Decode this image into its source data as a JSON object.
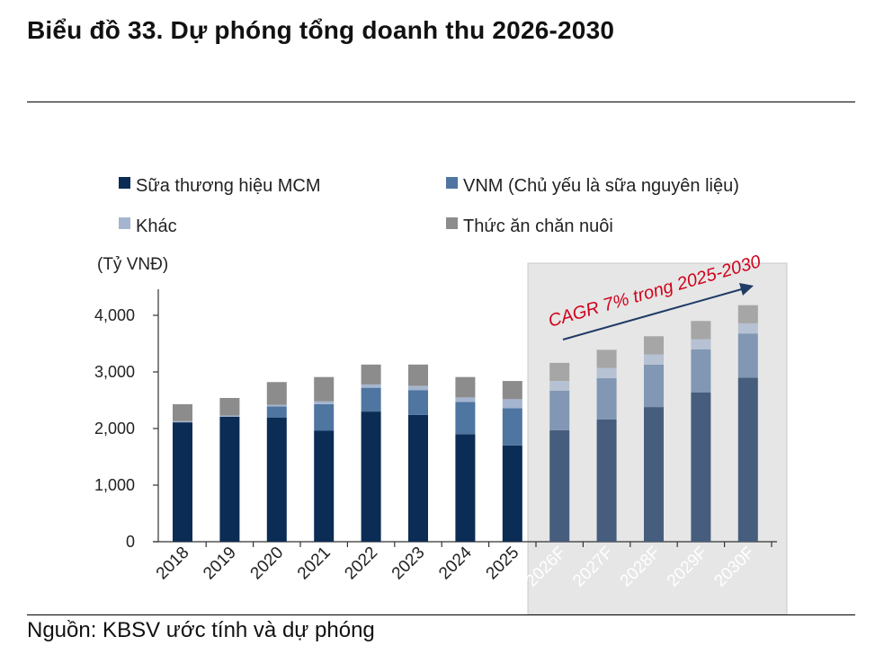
{
  "header": {
    "title": "Biểu đồ 33. Dự phóng tổng doanh thu 2026-2030"
  },
  "footer": {
    "source": "Nguồn: KBSV ước tính và dự phóng"
  },
  "chart_data": {
    "type": "bar",
    "stacked": true,
    "unit_label": "(Tỷ VNĐ)",
    "categories": [
      "2018",
      "2019",
      "2020",
      "2021",
      "2022",
      "2023",
      "2024",
      "2025",
      "2026F",
      "2027F",
      "2028F",
      "2029F",
      "2030F"
    ],
    "forecast_categories": [
      "2026F",
      "2027F",
      "2028F",
      "2029F",
      "2030F"
    ],
    "ylim": [
      0,
      4000
    ],
    "yticks": [
      {
        "value": 0,
        "label": "0"
      },
      {
        "value": 1000,
        "label": "1,000"
      },
      {
        "value": 2000,
        "label": "2,000"
      },
      {
        "value": 3000,
        "label": "3,000"
      },
      {
        "value": 4000,
        "label": "4,000"
      }
    ],
    "series": [
      {
        "name": "Sữa thương hiệu MCM",
        "color": "#0b2c54",
        "forecast_color": "#465d7d",
        "values": [
          2110,
          2210,
          2190,
          1960,
          2300,
          2240,
          1900,
          1700,
          1970,
          2160,
          2380,
          2640,
          2900
        ]
      },
      {
        "name": "VNM (Chủ yếu là sữa nguyên liệu)",
        "color": "#4f75a1",
        "forecast_color": "#8197b4",
        "values": [
          0,
          0,
          200,
          470,
          420,
          440,
          570,
          660,
          700,
          730,
          750,
          760,
          780
        ]
      },
      {
        "name": "Khác",
        "color": "#a5b5cf",
        "forecast_color": "#b6c1d3",
        "values": [
          20,
          20,
          30,
          50,
          60,
          70,
          80,
          160,
          170,
          180,
          180,
          180,
          180
        ]
      },
      {
        "name": "Thức ăn chăn nuôi",
        "color": "#8c8c8c",
        "forecast_color": "#a6a6a6",
        "values": [
          300,
          310,
          400,
          430,
          350,
          380,
          360,
          320,
          320,
          320,
          320,
          320,
          320
        ]
      }
    ],
    "annotation": {
      "text": "CAGR 7% trong 2025-2030",
      "color": "#d0021b"
    },
    "forecast_panel_color": "#e6e6e6",
    "grid": false,
    "legend": "top"
  }
}
